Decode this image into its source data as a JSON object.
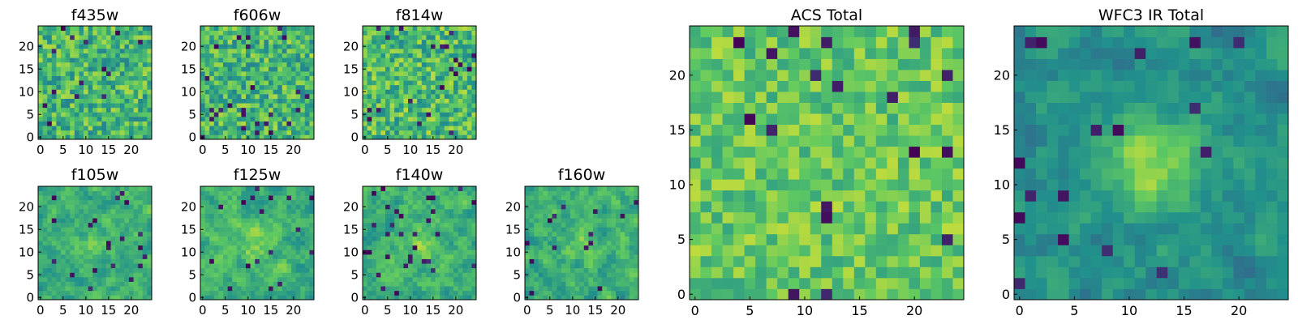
{
  "figure": {
    "background": "#ffffff"
  },
  "colormap": {
    "name": "viridis",
    "stops": [
      "#440154",
      "#3b528b",
      "#21918c",
      "#5ec962",
      "#fde725"
    ]
  },
  "chart_data": [
    {
      "type": "heatmap",
      "title": "f435w",
      "grid_size": 25,
      "xlim": [
        0,
        24
      ],
      "ylim": [
        0,
        24
      ],
      "xticks": [
        0,
        5,
        10,
        15,
        20
      ],
      "yticks": [
        0,
        5,
        10,
        15,
        20
      ],
      "texture": "noise",
      "seed": 11,
      "center_boost": 0.0,
      "mean": 0.66,
      "spread": 0.22
    },
    {
      "type": "heatmap",
      "title": "f606w",
      "grid_size": 25,
      "xlim": [
        0,
        24
      ],
      "ylim": [
        0,
        24
      ],
      "xticks": [
        0,
        5,
        10,
        15,
        20
      ],
      "yticks": [
        0,
        5,
        10,
        15,
        20
      ],
      "texture": "noise",
      "seed": 23,
      "center_boost": 0.0,
      "mean": 0.66,
      "spread": 0.22
    },
    {
      "type": "heatmap",
      "title": "f814w",
      "grid_size": 25,
      "xlim": [
        0,
        24
      ],
      "ylim": [
        0,
        24
      ],
      "xticks": [
        0,
        5,
        10,
        15,
        20
      ],
      "yticks": [
        0,
        5,
        10,
        15,
        20
      ],
      "texture": "noise",
      "seed": 37,
      "center_boost": 0.0,
      "mean": 0.68,
      "spread": 0.22
    },
    {
      "type": "heatmap",
      "title": "f105w",
      "grid_size": 25,
      "xlim": [
        0,
        24
      ],
      "ylim": [
        0,
        24
      ],
      "xticks": [
        0,
        5,
        10,
        15,
        20
      ],
      "yticks": [
        0,
        5,
        10,
        15,
        20
      ],
      "texture": "smooth",
      "seed": 41,
      "center_boost": 0.12,
      "mean": 0.62,
      "spread": 0.26
    },
    {
      "type": "heatmap",
      "title": "f125w",
      "grid_size": 25,
      "xlim": [
        0,
        24
      ],
      "ylim": [
        0,
        24
      ],
      "xticks": [
        0,
        5,
        10,
        15,
        20
      ],
      "yticks": [
        0,
        5,
        10,
        15,
        20
      ],
      "texture": "smooth",
      "seed": 53,
      "center_boost": 0.14,
      "mean": 0.64,
      "spread": 0.26
    },
    {
      "type": "heatmap",
      "title": "f140w",
      "grid_size": 25,
      "xlim": [
        0,
        24
      ],
      "ylim": [
        0,
        24
      ],
      "xticks": [
        0,
        5,
        10,
        15,
        20
      ],
      "yticks": [
        0,
        5,
        10,
        15,
        20
      ],
      "texture": "smooth",
      "seed": 67,
      "center_boost": 0.12,
      "mean": 0.64,
      "spread": 0.26
    },
    {
      "type": "heatmap",
      "title": "f160w",
      "grid_size": 25,
      "xlim": [
        0,
        24
      ],
      "ylim": [
        0,
        24
      ],
      "xticks": [
        0,
        5,
        10,
        15,
        20
      ],
      "yticks": [
        0,
        5,
        10,
        15,
        20
      ],
      "texture": "smooth",
      "seed": 79,
      "center_boost": 0.12,
      "mean": 0.63,
      "spread": 0.27
    },
    {
      "type": "heatmap",
      "title": "ACS Total",
      "grid_size": 25,
      "xlim": [
        0,
        24
      ],
      "ylim": [
        0,
        24
      ],
      "xticks": [
        0,
        5,
        10,
        15,
        20
      ],
      "yticks": [
        0,
        5,
        10,
        15,
        20
      ],
      "texture": "noise",
      "seed": 97,
      "center_boost": 0.0,
      "mean": 0.74,
      "spread": 0.16
    },
    {
      "type": "heatmap",
      "title": "WFC3 IR Total",
      "grid_size": 25,
      "xlim": [
        0,
        24
      ],
      "ylim": [
        0,
        24
      ],
      "xticks": [
        0,
        5,
        10,
        15,
        20
      ],
      "yticks": [
        0,
        5,
        10,
        15,
        20
      ],
      "texture": "smooth",
      "seed": 113,
      "center_boost": 0.33,
      "mean": 0.5,
      "spread": 0.22
    }
  ]
}
